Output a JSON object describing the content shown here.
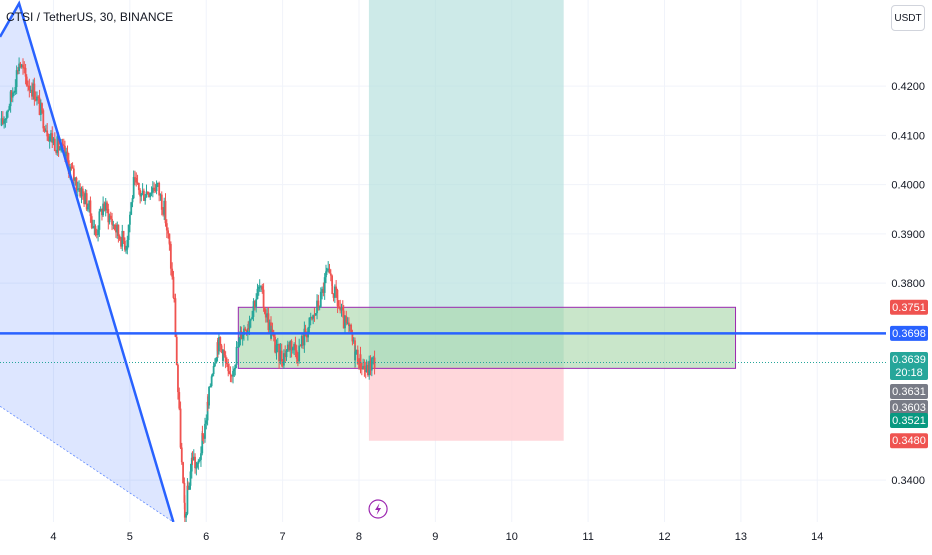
{
  "header": {
    "symbol_title": "CTSI / TetherUS, 30, BINANCE",
    "currency_label": "USDT"
  },
  "colors": {
    "up": "#26a69a",
    "down": "#ef5350",
    "trendline": "#2962ff",
    "level_line": "#2962ff",
    "box_fill": "#a5d6a7",
    "box_border": "#9c27b0",
    "target_zone": "#b2dfdb",
    "stop_zone": "#ffcdd2"
  },
  "chart_data": {
    "type": "candlestick",
    "symbol": "CTSI / TetherUS",
    "interval": "30",
    "exchange": "BINANCE",
    "x_tick_labels": [
      "4",
      "5",
      "6",
      "7",
      "8",
      "9",
      "10",
      "11",
      "12",
      "13",
      "14"
    ],
    "xlim": [
      3.3,
      14.9
    ],
    "y_tick_labels": [
      "0.4200",
      "0.4100",
      "0.4000",
      "0.3900",
      "0.3800",
      "0.3400"
    ],
    "y_ticks": [
      0.42,
      0.41,
      0.4,
      0.39,
      0.38,
      0.34
    ],
    "ylim": [
      0.3315,
      0.4375
    ],
    "close_path": [
      [
        3.32,
        0.412
      ],
      [
        3.45,
        0.418
      ],
      [
        3.55,
        0.425
      ],
      [
        3.65,
        0.421
      ],
      [
        3.75,
        0.419
      ],
      [
        3.85,
        0.414
      ],
      [
        3.95,
        0.41
      ],
      [
        4.05,
        0.408
      ],
      [
        4.15,
        0.406
      ],
      [
        4.25,
        0.402
      ],
      [
        4.35,
        0.399
      ],
      [
        4.45,
        0.396
      ],
      [
        4.55,
        0.39
      ],
      [
        4.65,
        0.396
      ],
      [
        4.75,
        0.393
      ],
      [
        4.85,
        0.39
      ],
      [
        4.95,
        0.388
      ],
      [
        5.05,
        0.4
      ],
      [
        5.15,
        0.398
      ],
      [
        5.25,
        0.399
      ],
      [
        5.35,
        0.4
      ],
      [
        5.45,
        0.395
      ],
      [
        5.52,
        0.387
      ],
      [
        5.58,
        0.376
      ],
      [
        5.63,
        0.358
      ],
      [
        5.68,
        0.343
      ],
      [
        5.72,
        0.332
      ],
      [
        5.76,
        0.338
      ],
      [
        5.82,
        0.345
      ],
      [
        5.88,
        0.342
      ],
      [
        5.95,
        0.348
      ],
      [
        6.02,
        0.355
      ],
      [
        6.08,
        0.363
      ],
      [
        6.15,
        0.368
      ],
      [
        6.22,
        0.366
      ],
      [
        6.3,
        0.36
      ],
      [
        6.38,
        0.365
      ],
      [
        6.46,
        0.37
      ],
      [
        6.55,
        0.372
      ],
      [
        6.62,
        0.376
      ],
      [
        6.7,
        0.379
      ],
      [
        6.78,
        0.374
      ],
      [
        6.85,
        0.37
      ],
      [
        6.92,
        0.366
      ],
      [
        7.0,
        0.365
      ],
      [
        7.1,
        0.368
      ],
      [
        7.2,
        0.366
      ],
      [
        7.3,
        0.37
      ],
      [
        7.4,
        0.373
      ],
      [
        7.5,
        0.377
      ],
      [
        7.58,
        0.382
      ],
      [
        7.65,
        0.379
      ],
      [
        7.72,
        0.376
      ],
      [
        7.8,
        0.372
      ],
      [
        7.88,
        0.37
      ],
      [
        7.95,
        0.366
      ],
      [
        8.02,
        0.364
      ],
      [
        8.1,
        0.362
      ],
      [
        8.17,
        0.364
      ],
      [
        8.22,
        0.3639
      ]
    ],
    "drawings": {
      "trendline": {
        "from": [
          3.3,
          0.43
        ],
        "via": [
          3.55,
          0.4368
        ],
        "to": [
          5.57,
          0.3315
        ]
      },
      "shaded_triangle_lower_edge": {
        "from": [
          3.3,
          0.355
        ],
        "to": [
          5.57,
          0.3315
        ]
      },
      "horizontal_level": 0.3698,
      "range_box": {
        "x": [
          6.42,
          12.93
        ],
        "y": [
          0.3627,
          0.3751
        ]
      },
      "long_position": {
        "x": [
          8.13,
          10.68
        ],
        "entry": 0.3631,
        "target": 0.4375,
        "stop": 0.348
      },
      "current_price_line": 0.3639
    },
    "price_labels": [
      {
        "value": 0.3751,
        "text": "0.3751",
        "color": "#ef5350"
      },
      {
        "value": 0.3698,
        "text": "0.3698",
        "color": "#2962ff"
      },
      {
        "value": 0.3639,
        "text": "0.3639",
        "sub": "20:18",
        "color": "#26a69a"
      },
      {
        "value": 0.3631,
        "text": "0.3631",
        "color": "#787b86"
      },
      {
        "value": 0.3603,
        "text": "0.3603",
        "color": "#787b86"
      },
      {
        "value": 0.3521,
        "text": "0.3521",
        "color": "#089981"
      },
      {
        "value": 0.348,
        "text": "0.3480",
        "color": "#ef5350"
      }
    ]
  }
}
